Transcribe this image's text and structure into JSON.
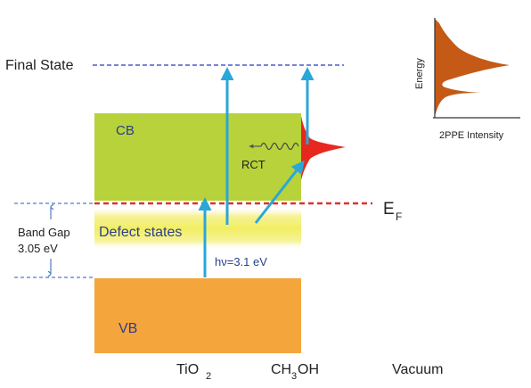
{
  "labels": {
    "final_state": "Final State",
    "cb": "CB",
    "vb": "VB",
    "defect_states": "Defect states",
    "band_gap_line1": "Band Gap",
    "band_gap_line2": "3.05 eV",
    "fermi_main": "E",
    "fermi_sub": "F",
    "rct": "RCT",
    "photon": "hν=3.1 eV",
    "tio2_main": "TiO",
    "tio2_sub": "2",
    "ch3oh_a": "CH",
    "ch3oh_sub": "3",
    "ch3oh_b": "OH",
    "vacuum": "Vacuum"
  },
  "inset": {
    "xlabel": "2PPE Intensity",
    "ylabel": "Energy"
  },
  "colors": {
    "cb_fill": "#b7d23a",
    "vb_fill": "#f4a53c",
    "defect_fill": "#f2ee62",
    "arrow": "#2aa7d9",
    "fermi_line": "#e0302b",
    "final_state_line": "#4c5ac8",
    "band_gap_line": "#4f7dc2",
    "peak_fill": "#e8281e",
    "inset_fill": "#c45a15",
    "text": "#222222",
    "label_blue": "#2c3e8c"
  }
}
